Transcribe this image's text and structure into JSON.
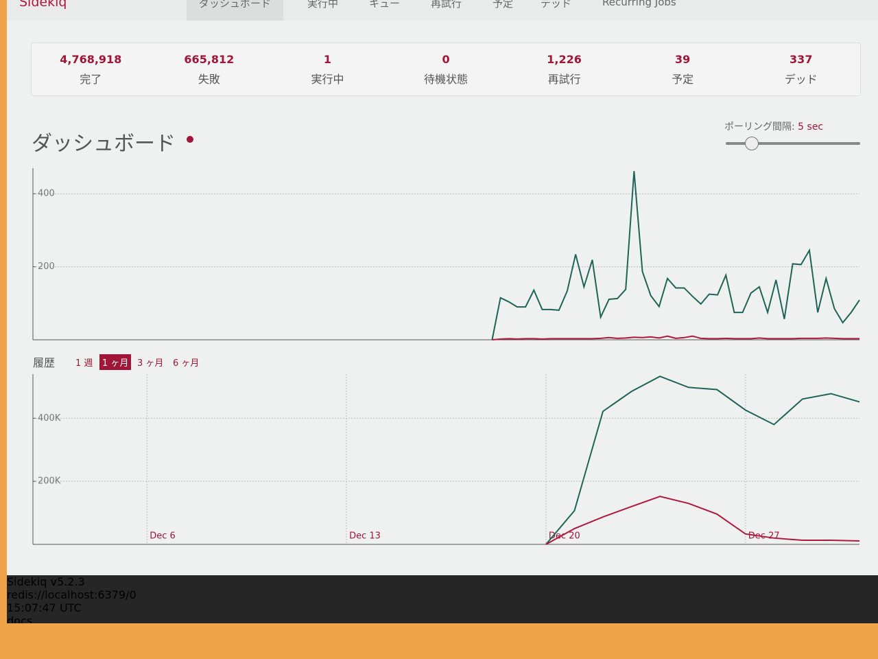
{
  "nav": {
    "brand": "Sidekiq",
    "tabs": [
      "ダッシュボード",
      "実行中",
      "キュー",
      "再試行",
      "予定",
      "デッド",
      "Recurring Jobs"
    ]
  },
  "stats": [
    {
      "value": "4,768,918",
      "label": "完了"
    },
    {
      "value": "665,812",
      "label": "失敗"
    },
    {
      "value": "1",
      "label": "実行中"
    },
    {
      "value": "0",
      "label": "待機状態"
    },
    {
      "value": "1,226",
      "label": "再試行"
    },
    {
      "value": "39",
      "label": "予定"
    },
    {
      "value": "337",
      "label": "デッド"
    }
  ],
  "dashboard": {
    "title": "ダッシュボード",
    "polling_label": "ポーリング間隔:",
    "polling_value": "5 sec"
  },
  "history": {
    "title": "履歴",
    "ranges": [
      "1 週",
      "1 ヶ月",
      "3 ヶ月",
      "6 ヶ月"
    ],
    "active": 1
  },
  "chart_data": [
    {
      "type": "line",
      "ylim": [
        0,
        470
      ],
      "yticks": [
        200,
        400
      ],
      "grid": true,
      "series": [
        {
          "color": "#1e6357",
          "values": [
            null,
            null,
            null,
            null,
            null,
            null,
            null,
            null,
            null,
            null,
            null,
            null,
            null,
            null,
            null,
            null,
            null,
            null,
            null,
            null,
            null,
            null,
            null,
            null,
            null,
            null,
            null,
            null,
            null,
            null,
            null,
            null,
            null,
            null,
            null,
            null,
            null,
            null,
            null,
            null,
            null,
            null,
            null,
            null,
            null,
            null,
            null,
            null,
            null,
            null,
            null,
            null,
            null,
            null,
            null,
            0,
            115,
            104,
            90,
            90,
            136,
            83,
            83,
            81,
            134,
            234,
            145,
            219,
            62,
            111,
            113,
            138,
            462,
            187,
            121,
            91,
            168,
            142,
            142,
            119,
            98,
            125,
            123,
            177,
            75,
            75,
            128,
            145,
            75,
            164,
            57,
            208,
            206,
            245,
            75,
            168,
            85,
            47,
            75,
            109
          ]
        },
        {
          "color": "#b0173f",
          "values": [
            null,
            null,
            null,
            null,
            null,
            null,
            null,
            null,
            null,
            null,
            null,
            null,
            null,
            null,
            null,
            null,
            null,
            null,
            null,
            null,
            null,
            null,
            null,
            null,
            null,
            null,
            null,
            null,
            null,
            null,
            null,
            null,
            null,
            null,
            null,
            null,
            null,
            null,
            null,
            null,
            null,
            null,
            null,
            null,
            null,
            null,
            null,
            null,
            null,
            null,
            null,
            null,
            null,
            null,
            null,
            0,
            2,
            3,
            2,
            3,
            3,
            2,
            3,
            3,
            3,
            3,
            3,
            3,
            4,
            6,
            4,
            5,
            7,
            6,
            8,
            5,
            10,
            4,
            6,
            10,
            4,
            3,
            3,
            4,
            3,
            3,
            3,
            5,
            3,
            3,
            3,
            3,
            4,
            4,
            4,
            5,
            4,
            3,
            3,
            3
          ]
        }
      ]
    },
    {
      "type": "line",
      "ylim": [
        0,
        540000
      ],
      "yticks": [
        {
          "value": 200000,
          "label": "200K"
        },
        {
          "value": 400000,
          "label": "400K"
        }
      ],
      "grid": true,
      "categories": [
        null,
        null,
        null,
        null,
        "Dec 6",
        null,
        null,
        null,
        null,
        null,
        null,
        "Dec 13",
        null,
        null,
        null,
        null,
        null,
        null,
        "Dec 20",
        null,
        null,
        null,
        null,
        null,
        null,
        "Dec 27",
        null,
        null,
        null,
        null
      ],
      "series": [
        {
          "color": "#1e6357",
          "values": [
            null,
            null,
            null,
            null,
            null,
            null,
            null,
            null,
            null,
            null,
            null,
            null,
            null,
            null,
            null,
            null,
            null,
            null,
            0,
            107000,
            422000,
            485000,
            533000,
            498000,
            491000,
            426000,
            380000,
            461000,
            478000,
            452000
          ]
        },
        {
          "color": "#b0173f",
          "values": [
            null,
            null,
            null,
            null,
            null,
            null,
            null,
            null,
            null,
            null,
            null,
            null,
            null,
            null,
            null,
            null,
            null,
            null,
            0,
            50000,
            87000,
            120000,
            152000,
            130000,
            96000,
            33000,
            20000,
            13000,
            13000,
            11000
          ]
        }
      ]
    }
  ],
  "footer": [
    "Sidekiq v5.2.3",
    "redis://localhost:6379/0",
    "15:07:47 UTC",
    "docs"
  ]
}
